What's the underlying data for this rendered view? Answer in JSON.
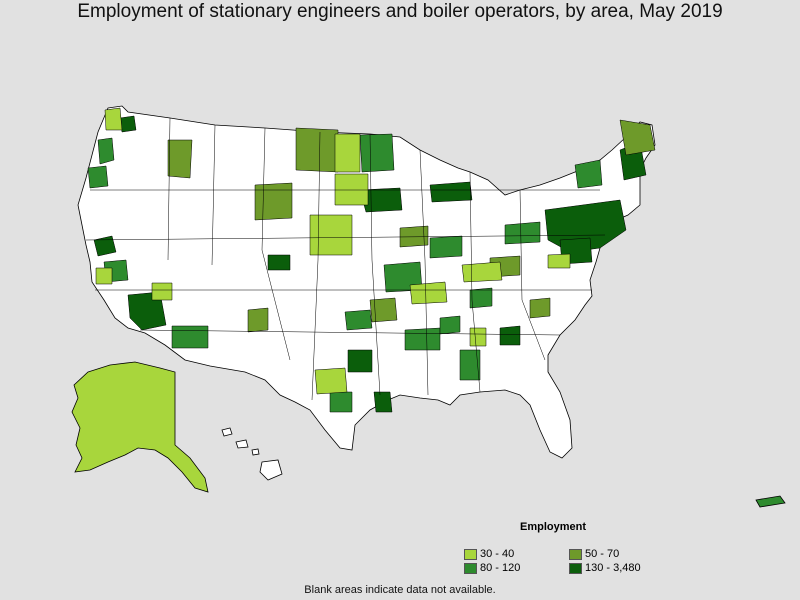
{
  "title": "Employment of stationary engineers and boiler operators, by area, May 2019",
  "legend": {
    "title": "Employment",
    "items": [
      {
        "label": "30 - 40",
        "color": "#a8d63c"
      },
      {
        "label": "50 - 70",
        "color": "#6e9a2a"
      },
      {
        "label": "80 - 120",
        "color": "#2e8b2e"
      },
      {
        "label": "130 - 3,480",
        "color": "#0b5e0b"
      }
    ]
  },
  "footnote": "Blank areas indicate data not available.",
  "colors": {
    "background": "#e1e1e1",
    "land": "#ffffff",
    "border": "#000000",
    "level1": "#a8d63c",
    "level2": "#6e9a2a",
    "level3": "#2e8b2e",
    "level4": "#0b5e0b"
  }
}
